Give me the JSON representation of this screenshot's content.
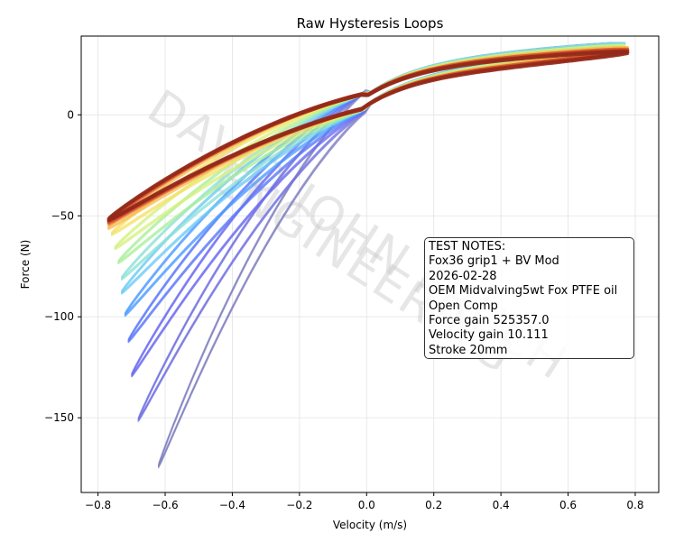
{
  "chart_data": {
    "type": "line",
    "title": "Raw Hysteresis Loops",
    "xlabel": "Velocity (m/s)",
    "ylabel": "Force (N)",
    "xlim": [
      -0.85,
      0.87
    ],
    "ylim": [
      -187,
      39
    ],
    "xticks": [
      -0.8,
      -0.6,
      -0.4,
      -0.2,
      0.0,
      0.2,
      0.4,
      0.6,
      0.8
    ],
    "xtick_labels": [
      "−0.8",
      "−0.6",
      "−0.4",
      "−0.2",
      "0.0",
      "0.2",
      "0.4",
      "0.6",
      "0.8"
    ],
    "yticks": [
      0,
      -50,
      -100,
      -150
    ],
    "ytick_labels": [
      "0",
      "−50",
      "−100",
      "−150"
    ],
    "grid": true,
    "colormap": "jet",
    "series": [
      {
        "color": "#8080c0",
        "vmin": -0.62,
        "fmin": -174,
        "vmax": 0.72,
        "fmax": 24
      },
      {
        "color": "#7070e0",
        "vmin": -0.68,
        "fmin": -151,
        "vmax": 0.74,
        "fmax": 26
      },
      {
        "color": "#6a6af0",
        "vmin": -0.7,
        "fmin": -129,
        "vmax": 0.75,
        "fmax": 27
      },
      {
        "color": "#5a78f8",
        "vmin": -0.71,
        "fmin": -112,
        "vmax": 0.76,
        "fmax": 28
      },
      {
        "color": "#4c9cff",
        "vmin": -0.72,
        "fmin": -99,
        "vmax": 0.77,
        "fmax": 28
      },
      {
        "color": "#6ecbf5",
        "vmin": -0.73,
        "fmin": -88,
        "vmax": 0.77,
        "fmax": 28
      },
      {
        "color": "#8ee2d5",
        "vmin": -0.73,
        "fmin": -81,
        "vmax": 0.77,
        "fmax": 28
      },
      {
        "color": "#a8ef9a",
        "vmin": -0.74,
        "fmin": -73,
        "vmax": 0.77,
        "fmax": 27
      },
      {
        "color": "#d5f07c",
        "vmin": -0.75,
        "fmin": -66,
        "vmax": 0.77,
        "fmax": 27
      },
      {
        "color": "#f5e060",
        "vmin": -0.76,
        "fmin": -59,
        "vmax": 0.78,
        "fmax": 26
      },
      {
        "color": "#f7b84a",
        "vmin": -0.77,
        "fmin": -56,
        "vmax": 0.78,
        "fmax": 26
      },
      {
        "color": "#ef7a3a",
        "vmin": -0.77,
        "fmin": -54,
        "vmax": 0.78,
        "fmax": 25
      },
      {
        "color": "#d04a2a",
        "vmin": -0.77,
        "fmin": -53,
        "vmax": 0.78,
        "fmax": 25
      },
      {
        "color": "#a83320",
        "vmin": -0.77,
        "fmin": -52,
        "vmax": 0.78,
        "fmax": 24
      },
      {
        "color": "#922a1a",
        "vmin": -0.77,
        "fmin": -52,
        "vmax": 0.78,
        "fmax": 24
      }
    ],
    "watermark": [
      "DAVID JOHN FRUCH",
      "ENGINEERING"
    ],
    "annotation": {
      "lines": [
        "TEST NOTES:",
        "Fox36 grip1 + BV Mod",
        "2026-02-28",
        "OEM Midvalving5wt Fox PTFE oil",
        "Open Comp",
        "Force gain 525357.0",
        "Velocity gain 10.111",
        "Stroke 20mm"
      ]
    }
  }
}
